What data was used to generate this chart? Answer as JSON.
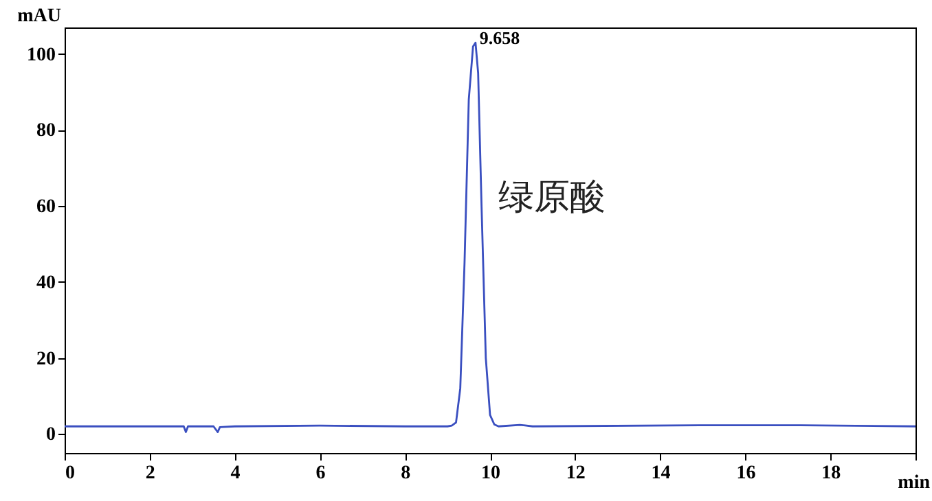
{
  "chart_data": {
    "type": "line",
    "xlabel": "min",
    "ylabel": "mAU",
    "x": [
      0,
      1,
      2,
      2.8,
      2.85,
      2.9,
      3.5,
      3.6,
      3.65,
      4,
      6,
      8,
      9.0,
      9.1,
      9.2,
      9.3,
      9.4,
      9.5,
      9.6,
      9.658,
      9.72,
      9.8,
      9.9,
      10.0,
      10.1,
      10.2,
      10.7,
      11,
      15,
      17.3,
      20
    ],
    "series": [
      {
        "color": "#3a4fc0",
        "values": [
          2,
          2,
          2,
          2,
          0.5,
          2,
          2,
          0.5,
          1.8,
          2,
          2.2,
          2,
          2,
          2.2,
          3,
          12,
          45,
          88,
          102,
          103,
          95,
          60,
          20,
          5,
          2.5,
          2,
          2.4,
          2,
          2.3,
          2.3,
          2
        ]
      }
    ],
    "xlim": [
      0,
      20
    ],
    "xticks": [
      0,
      2,
      4,
      6,
      8,
      10,
      12,
      14,
      16,
      18,
      {
        "value": 20,
        "label": null
      }
    ],
    "ylim": [
      -5,
      107
    ],
    "yticks": [
      0,
      20,
      40,
      60,
      80,
      100
    ],
    "annotations": [
      {
        "text": "9.658",
        "x": 9.658,
        "y": 103
      },
      "绿原酸"
    ],
    "grid": false,
    "marker": "none",
    "line_style": "solid"
  }
}
